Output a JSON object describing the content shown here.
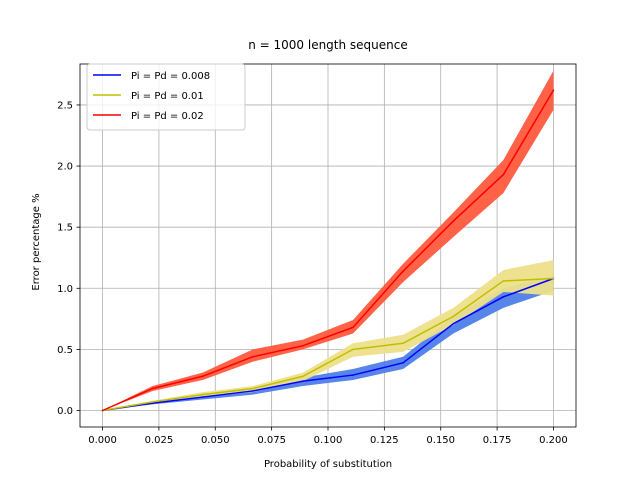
{
  "chart_data": {
    "type": "line",
    "title": "n = 1000 length sequence",
    "xlabel": "Probability of substitution",
    "ylabel": "Error percentage %",
    "xlim": [
      -0.01,
      0.21
    ],
    "ylim": [
      -0.135,
      2.835
    ],
    "x_ticks": [
      0.0,
      0.025,
      0.05,
      0.075,
      0.1,
      0.125,
      0.15,
      0.175,
      0.2
    ],
    "x_tick_labels": [
      "0.000",
      "0.025",
      "0.050",
      "0.075",
      "0.100",
      "0.125",
      "0.150",
      "0.175",
      "0.200"
    ],
    "y_ticks": [
      0.0,
      0.5,
      1.0,
      1.5,
      2.0,
      2.5
    ],
    "y_tick_labels": [
      "0.0",
      "0.5",
      "1.0",
      "1.5",
      "2.0",
      "2.5"
    ],
    "grid": true,
    "legend_position": "top-left",
    "x": [
      0.0,
      0.0222,
      0.0444,
      0.0667,
      0.0889,
      0.1111,
      0.1333,
      0.1556,
      0.1778,
      0.2
    ],
    "series": [
      {
        "name": "Pi = Pd = 0.008",
        "color": "#0000ff",
        "band_color": "#4e7ee8",
        "values": [
          0.0,
          0.06,
          0.11,
          0.16,
          0.24,
          0.29,
          0.39,
          0.71,
          0.93,
          1.08
        ],
        "lower": [
          0.0,
          0.05,
          0.09,
          0.13,
          0.2,
          0.25,
          0.34,
          0.63,
          0.84,
          0.98
        ],
        "upper": [
          0.0,
          0.07,
          0.13,
          0.18,
          0.27,
          0.34,
          0.44,
          0.77,
          1.0,
          1.1
        ]
      },
      {
        "name": "Pi = Pd = 0.01",
        "color": "#bfbf00",
        "band_color": "#ede08a",
        "values": [
          0.0,
          0.07,
          0.13,
          0.18,
          0.28,
          0.5,
          0.55,
          0.77,
          1.06,
          1.08
        ],
        "lower": [
          0.0,
          0.06,
          0.11,
          0.15,
          0.24,
          0.44,
          0.48,
          0.7,
          0.97,
          0.94
        ],
        "upper": [
          0.0,
          0.08,
          0.15,
          0.2,
          0.31,
          0.55,
          0.62,
          0.84,
          1.15,
          1.23
        ]
      },
      {
        "name": "Pi = Pd = 0.02",
        "color": "#ff0000",
        "band_color": "#ff5a3c",
        "values": [
          0.0,
          0.18,
          0.28,
          0.44,
          0.53,
          0.68,
          1.14,
          1.55,
          1.93,
          2.62
        ],
        "lower": [
          0.0,
          0.16,
          0.25,
          0.4,
          0.5,
          0.63,
          1.05,
          1.42,
          1.78,
          2.46
        ],
        "upper": [
          0.0,
          0.2,
          0.31,
          0.5,
          0.58,
          0.74,
          1.2,
          1.62,
          2.05,
          2.78
        ]
      }
    ]
  }
}
